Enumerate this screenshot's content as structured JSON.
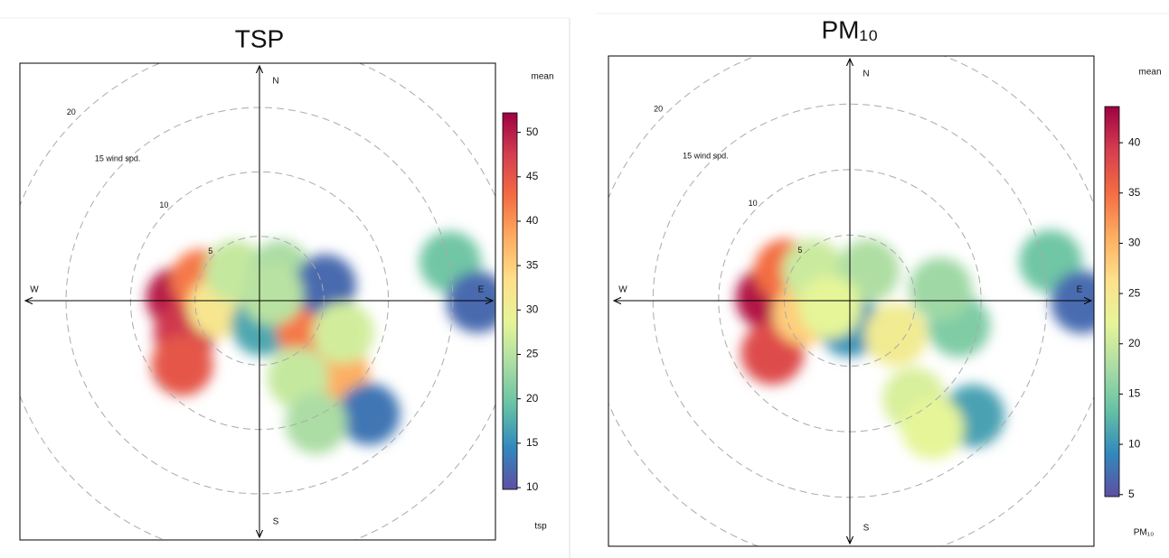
{
  "chart_data": [
    {
      "type": "polar",
      "title": "TSP",
      "scale_title": "mean",
      "scale_label": "tsp",
      "directions": [
        "N",
        "E",
        "S",
        "W"
      ],
      "rlim": [
        0,
        18.3
      ],
      "rings": [
        5,
        10,
        {
          "value": 15,
          "label": "15 wind spd."
        },
        20
      ],
      "clim": [
        9.8,
        52.2
      ],
      "cticks": [
        10,
        15,
        20,
        25,
        30,
        35,
        40,
        45,
        50
      ],
      "colors": [
        "#5e4fa2",
        "#3288bd",
        "#66c2a5",
        "#abdda4",
        "#e6f598",
        "#fee08b",
        "#fdae61",
        "#f46d43",
        "#d53e4f",
        "#9e0142"
      ],
      "u": [
        -6.4,
        -5.8,
        -6.0,
        -4.5,
        -3.2,
        -1.9,
        1.6,
        0.2,
        3.7,
        6.1,
        8.5,
        5.1,
        14.8,
        16.9,
        3.0,
        4.4,
        6.5,
        1.0
      ],
      "v": [
        0.2,
        -2.5,
        -5.0,
        1.6,
        -0.5,
        2.3,
        2.3,
        -1.9,
        -2.2,
        -5.7,
        -8.8,
        1.2,
        3.0,
        -0.1,
        -6.0,
        -9.5,
        -2.5,
        0.5
      ],
      "values": [
        50,
        48,
        45,
        42,
        32,
        26,
        24,
        17,
        42,
        38,
        13,
        12,
        20,
        12,
        26,
        24,
        27,
        25
      ]
    },
    {
      "type": "polar",
      "title": "PM₁₀",
      "scale_title": "mean",
      "scale_label": "PM₁₀",
      "directions": [
        "N",
        "E",
        "S",
        "W"
      ],
      "rlim": [
        0,
        18.6
      ],
      "rings": [
        5,
        10,
        {
          "value": 15,
          "label": "15 wind spd."
        },
        20
      ],
      "clim": [
        4.8,
        43.6
      ],
      "cticks": [
        5,
        10,
        15,
        20,
        25,
        30,
        35,
        40
      ],
      "colors": [
        "#5e4fa2",
        "#3288bd",
        "#66c2a5",
        "#abdda4",
        "#e6f598",
        "#fee08b",
        "#fdae61",
        "#f46d43",
        "#d53e4f",
        "#9e0142"
      ],
      "u": [
        -6.3,
        -5.9,
        -4.9,
        -3.5,
        -2.8,
        0.0,
        1.4,
        3.5,
        8.3,
        6.9,
        9.4,
        4.9,
        6.3,
        15.3,
        17.7,
        -1.5
      ],
      "v": [
        0.2,
        -4.0,
        2.3,
        -1.0,
        2.3,
        -1.9,
        2.3,
        -2.6,
        -1.9,
        0.9,
        -8.8,
        -7.5,
        -9.7,
        3.0,
        -0.1,
        -0.5
      ],
      "values": [
        42,
        38,
        35,
        28,
        20,
        10,
        18,
        24,
        15,
        17,
        11,
        21,
        22,
        14,
        7,
        22
      ]
    }
  ]
}
